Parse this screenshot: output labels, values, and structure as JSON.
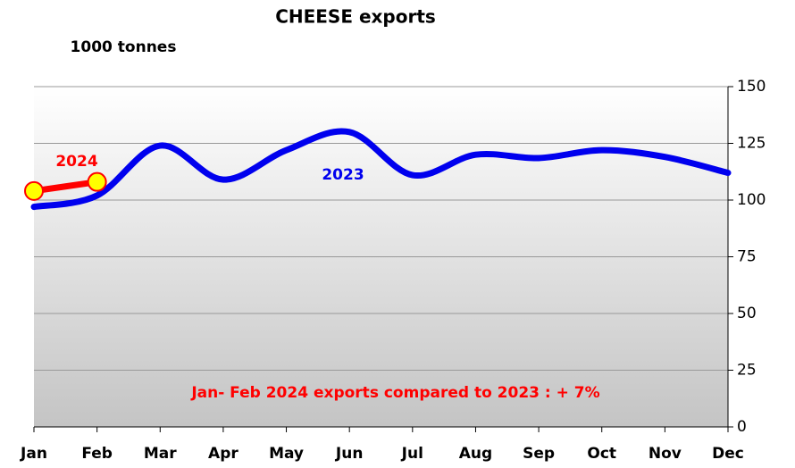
{
  "chart_data": {
    "type": "line",
    "title": "CHEESE exports",
    "y_label": "1000 tonnes",
    "categories": [
      "Jan",
      "Feb",
      "Mar",
      "Apr",
      "May",
      "Jun",
      "Jul",
      "Aug",
      "Sep",
      "Oct",
      "Nov",
      "Dec"
    ],
    "series": [
      {
        "name": "2023",
        "color": "#0000ee",
        "values": [
          97,
          102,
          124,
          109,
          122,
          130,
          111,
          120,
          118.5,
          122,
          119,
          112
        ]
      },
      {
        "name": "2024",
        "color": "#ff0000",
        "values": [
          104,
          108,
          null,
          null,
          null,
          null,
          null,
          null,
          null,
          null,
          null,
          null
        ]
      }
    ],
    "annotation": "Jan- Feb 2024 exports compared to 2023 : + 7%",
    "ylim": [
      0,
      150
    ],
    "yticks": [
      0,
      25,
      50,
      75,
      100,
      125,
      150
    ],
    "grid": true,
    "y_axis_side": "right"
  }
}
